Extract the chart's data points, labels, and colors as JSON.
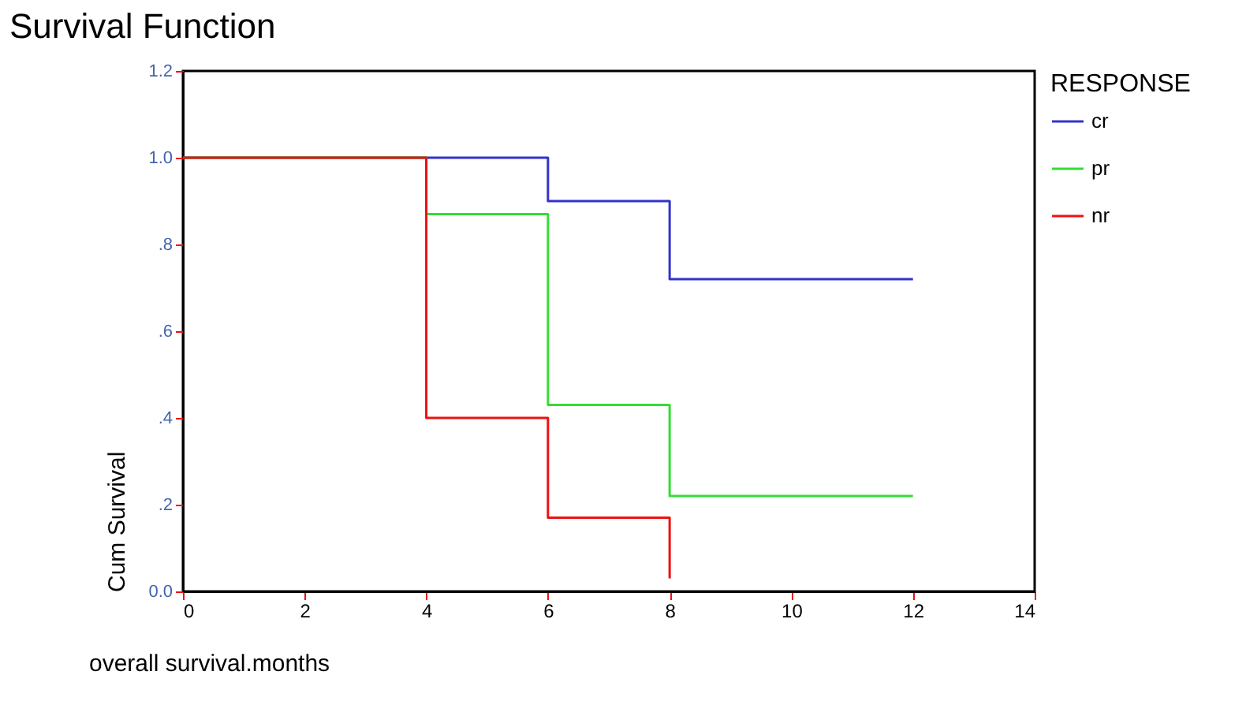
{
  "chart_data": {
    "type": "step",
    "title": "Survival Function",
    "xlabel": "overall survival.months",
    "ylabel": "Cum Survival",
    "legend_title": "RESPONSE",
    "legend": "right",
    "grid": false,
    "marker": "none",
    "xlim": [
      0,
      14
    ],
    "xticks": [
      0,
      2,
      4,
      6,
      8,
      10,
      12,
      14
    ],
    "ylim": [
      0,
      1.2
    ],
    "yticks": [
      {
        "value": 0,
        "label": "0.0"
      },
      {
        "value": 0.2,
        "label": ".2"
      },
      {
        "value": 0.4,
        "label": ".4"
      },
      {
        "value": 0.6,
        "label": ".6"
      },
      {
        "value": 0.8,
        "label": ".8"
      },
      {
        "value": 1,
        "label": "1.0"
      },
      {
        "value": 1.2,
        "label": "1.2"
      }
    ],
    "series": [
      {
        "name": "cr",
        "color": "#3333cc",
        "x": [
          0,
          4,
          6,
          8,
          12
        ],
        "values": [
          1,
          1,
          0.9,
          0.72,
          0.72
        ]
      },
      {
        "name": "pr",
        "color": "#33dd33",
        "x": [
          0,
          4,
          6,
          8,
          12
        ],
        "values": [
          1,
          0.87,
          0.43,
          0.22,
          0.22
        ]
      },
      {
        "name": "nr",
        "color": "#ee1111",
        "x": [
          0,
          4,
          6,
          8
        ],
        "values": [
          1,
          0.4,
          0.17,
          0.03
        ]
      }
    ]
  }
}
